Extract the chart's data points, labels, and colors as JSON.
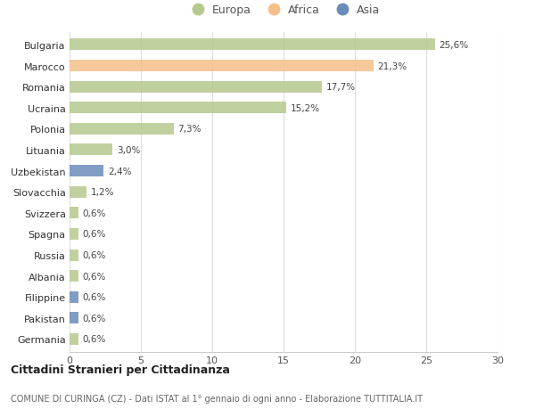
{
  "categories": [
    "Bulgaria",
    "Marocco",
    "Romania",
    "Ucraina",
    "Polonia",
    "Lituania",
    "Uzbekistan",
    "Slovacchia",
    "Svizzera",
    "Spagna",
    "Russia",
    "Albania",
    "Filippine",
    "Pakistan",
    "Germania"
  ],
  "values": [
    25.6,
    21.3,
    17.7,
    15.2,
    7.3,
    3.0,
    2.4,
    1.2,
    0.6,
    0.6,
    0.6,
    0.6,
    0.6,
    0.6,
    0.6
  ],
  "labels": [
    "25,6%",
    "21,3%",
    "17,7%",
    "15,2%",
    "7,3%",
    "3,0%",
    "2,4%",
    "1,2%",
    "0,6%",
    "0,6%",
    "0,6%",
    "0,6%",
    "0,6%",
    "0,6%",
    "0,6%"
  ],
  "colors": [
    "#b5c98e",
    "#f5c08a",
    "#b5c98e",
    "#b5c98e",
    "#b5c98e",
    "#b5c98e",
    "#6b8cba",
    "#b5c98e",
    "#b5c98e",
    "#b5c98e",
    "#b5c98e",
    "#b5c98e",
    "#6b8cba",
    "#6b8cba",
    "#b5c98e"
  ],
  "legend_labels": [
    "Europa",
    "Africa",
    "Asia"
  ],
  "legend_colors": [
    "#b5c98e",
    "#f5c08a",
    "#6b8cba"
  ],
  "xlim": [
    0,
    30
  ],
  "xticks": [
    0,
    5,
    10,
    15,
    20,
    25,
    30
  ],
  "title_bold": "Cittadini Stranieri per Cittadinanza",
  "subtitle": "COMUNE DI CURINGA (CZ) - Dati ISTAT al 1° gennaio di ogni anno - Elaborazione TUTTITALIA.IT",
  "background_color": "#ffffff",
  "bar_height": 0.55
}
